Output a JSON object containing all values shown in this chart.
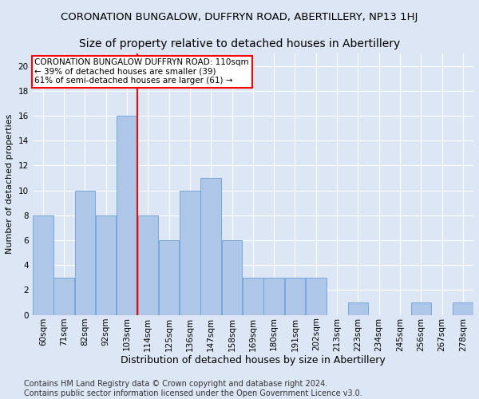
{
  "title": "CORONATION BUNGALOW, DUFFRYN ROAD, ABERTILLERY, NP13 1HJ",
  "subtitle": "Size of property relative to detached houses in Abertillery",
  "xlabel": "Distribution of detached houses by size in Abertillery",
  "ylabel": "Number of detached properties",
  "categories": [
    "60sqm",
    "71sqm",
    "82sqm",
    "92sqm",
    "103sqm",
    "114sqm",
    "125sqm",
    "136sqm",
    "147sqm",
    "158sqm",
    "169sqm",
    "180sqm",
    "191sqm",
    "202sqm",
    "213sqm",
    "223sqm",
    "234sqm",
    "245sqm",
    "256sqm",
    "267sqm",
    "278sqm"
  ],
  "values": [
    8,
    3,
    10,
    8,
    16,
    8,
    6,
    10,
    11,
    6,
    3,
    3,
    3,
    3,
    0,
    1,
    0,
    0,
    1,
    0,
    1
  ],
  "bar_color": "#aec6e8",
  "bar_edge_color": "#6a9fd8",
  "vline_x": 4.5,
  "vline_color": "red",
  "annotation_title": "CORONATION BUNGALOW DUFFRYN ROAD: 110sqm",
  "annotation_line2": "← 39% of detached houses are smaller (39)",
  "annotation_line3": "61% of semi-detached houses are larger (61) →",
  "annotation_box_color": "#ffffff",
  "annotation_box_edge": "red",
  "ylim": [
    0,
    21
  ],
  "yticks": [
    0,
    2,
    4,
    6,
    8,
    10,
    12,
    14,
    16,
    18,
    20
  ],
  "background_color": "#dce6f5",
  "plot_background": "#dce6f5",
  "grid_color": "#ffffff",
  "footer_line1": "Contains HM Land Registry data © Crown copyright and database right 2024.",
  "footer_line2": "Contains public sector information licensed under the Open Government Licence v3.0.",
  "title_fontsize": 9.5,
  "subtitle_fontsize": 10,
  "xlabel_fontsize": 9,
  "ylabel_fontsize": 8,
  "tick_fontsize": 7.5,
  "annotation_fontsize": 7.5,
  "footer_fontsize": 7
}
